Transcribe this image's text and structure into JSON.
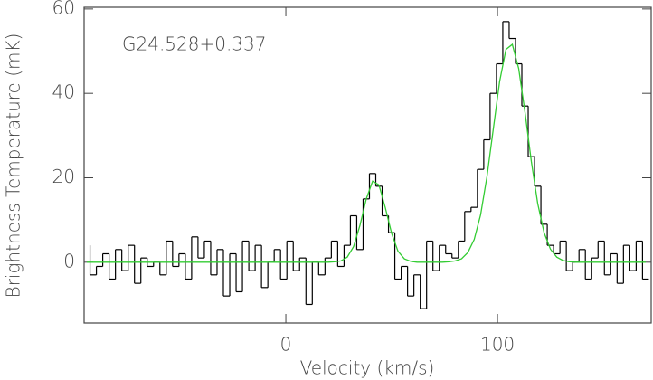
{
  "chart_data": {
    "type": "line",
    "annotation": "G24.528+0.337",
    "x_label": "Velocity (km/s)",
    "y_label": "Brightness Temperature (mK)",
    "xlim": [
      -95.3,
      172.6
    ],
    "ylim": [
      -14.4,
      60.4
    ],
    "xticks": [
      0,
      100
    ],
    "yticks": [
      0,
      20,
      40,
      60
    ],
    "x": [
      -94,
      -91,
      -88,
      -85,
      -82,
      -79,
      -76,
      -73,
      -70,
      -67,
      -64,
      -61,
      -58,
      -55,
      -52,
      -49,
      -46,
      -43,
      -40,
      -37,
      -34,
      -31,
      -28,
      -25,
      -22,
      -19,
      -16,
      -13,
      -10,
      -7,
      -4,
      -1,
      2,
      5,
      8,
      11,
      14,
      17,
      20,
      23,
      26,
      29,
      32,
      35,
      38,
      41,
      44,
      47,
      50,
      53,
      56,
      59,
      62,
      65,
      68,
      71,
      74,
      77,
      80,
      83,
      86,
      89,
      92,
      95,
      98,
      101,
      104,
      107,
      110,
      113,
      116,
      119,
      122,
      125,
      128,
      131,
      134,
      137,
      140,
      143,
      146,
      149,
      152,
      155,
      158,
      161,
      164,
      167,
      170
    ],
    "series": [
      {
        "color": "#000000",
        "step": true,
        "values": [
          4,
          -3,
          -1,
          2,
          -4,
          3,
          -2,
          4,
          -5,
          1,
          -1,
          0,
          -3,
          5,
          -1,
          2,
          -4,
          6,
          1,
          5,
          -3,
          3,
          -8,
          2,
          -7,
          5,
          -2,
          4,
          -6,
          0,
          3,
          -4,
          5,
          -2,
          1,
          -10,
          0,
          -3,
          1,
          5,
          -1,
          4,
          11,
          3,
          15,
          21,
          18,
          11,
          7,
          -4,
          -1,
          -8,
          -3,
          -11,
          5,
          -2,
          4,
          2,
          1,
          5,
          12,
          13,
          22,
          29,
          40,
          47,
          57,
          53,
          47,
          37,
          25,
          18,
          9,
          4,
          2,
          5,
          -2,
          0,
          3,
          -4,
          1,
          5,
          -3,
          2,
          -5,
          4,
          -2,
          5,
          -4
        ]
      },
      {
        "color": "#33cc33",
        "step": false,
        "values": [
          0,
          0,
          0,
          0,
          0,
          0,
          0,
          0,
          0,
          0,
          0,
          0,
          0,
          0,
          0,
          0,
          0,
          0,
          0,
          0,
          0,
          0,
          0,
          0,
          0,
          0,
          0,
          0,
          0,
          0,
          0,
          0,
          0,
          0,
          0,
          0,
          0,
          0,
          0,
          0.1,
          0.3,
          1.2,
          3.7,
          8.7,
          15.0,
          19.2,
          18.3,
          12.9,
          6.8,
          2.6,
          0.8,
          0.2,
          0,
          0,
          0,
          0,
          0,
          0.1,
          0.3,
          0.8,
          2.3,
          5.4,
          11.2,
          20.2,
          31.5,
          42.8,
          50.4,
          51.6,
          45.9,
          35.5,
          23.8,
          13.9,
          7.0,
          3.1,
          1.2,
          0.4,
          0.1,
          0,
          0,
          0,
          0,
          0,
          0,
          0,
          0,
          0,
          0,
          0,
          0
        ]
      }
    ]
  }
}
